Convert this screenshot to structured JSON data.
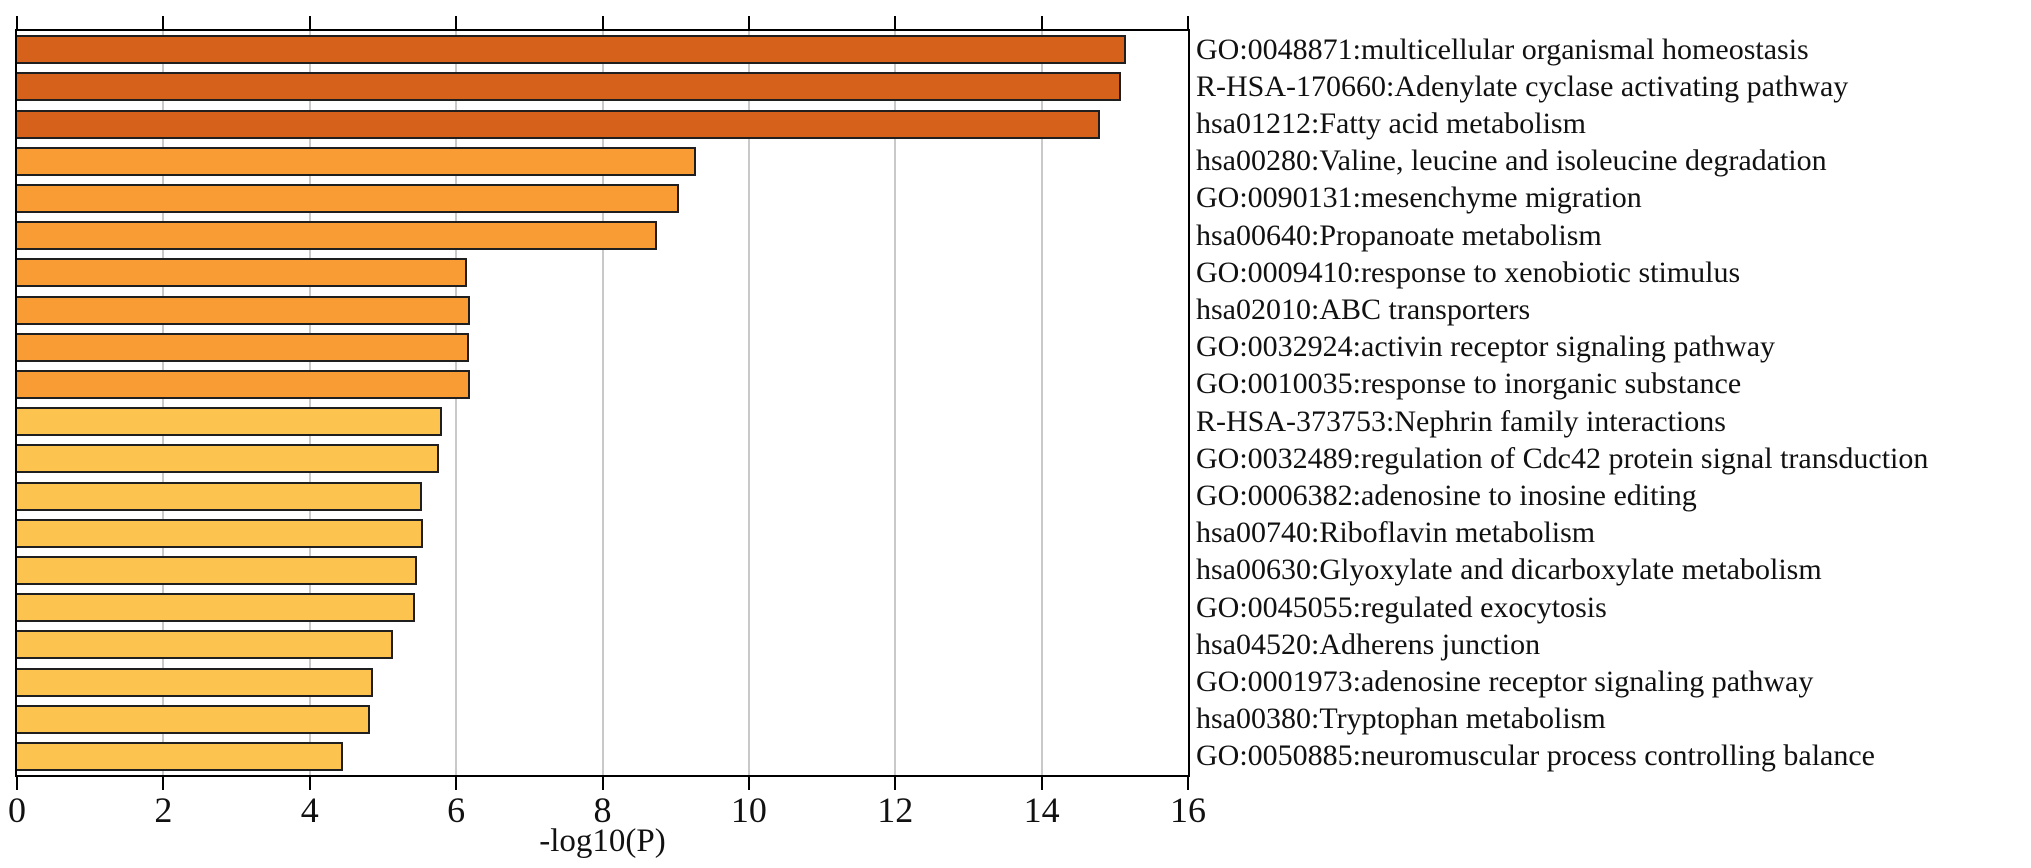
{
  "chart_data": {
    "type": "bar",
    "orientation": "horizontal",
    "title": "",
    "xlabel": "-log10(P)",
    "xlim": [
      0,
      16
    ],
    "xticks": [
      0,
      2,
      4,
      6,
      8,
      10,
      12,
      14,
      16
    ],
    "gridline_ticks": [
      2,
      4,
      6,
      8,
      10,
      12,
      14
    ],
    "grid": "vertical light gray gridlines behind bars",
    "legend": "none",
    "bar_border_color": "#1f1f1f",
    "frame_color": "#000000",
    "gridline_color": "#c9c9c9",
    "palette": {
      "high_significance": "#d6611a",
      "mid_significance": "#f89c33",
      "low_significance": "#fcc44f"
    },
    "items": [
      {
        "label": "GO:0048871:multicellular organismal homeostasis",
        "value": 15.15,
        "color": "#d6611a"
      },
      {
        "label": "R-HSA-170660:Adenylate cyclase activating pathway",
        "value": 15.08,
        "color": "#d6611a"
      },
      {
        "label": "hsa01212:Fatty acid metabolism",
        "value": 14.8,
        "color": "#d6611a"
      },
      {
        "label": "hsa00280:Valine, leucine and isoleucine degradation",
        "value": 9.28,
        "color": "#f89c33"
      },
      {
        "label": "GO:0090131:mesenchyme migration",
        "value": 9.05,
        "color": "#f89c33"
      },
      {
        "label": "hsa00640:Propanoate metabolism",
        "value": 8.74,
        "color": "#f89c33"
      },
      {
        "label": "GO:0009410:response to xenobiotic stimulus",
        "value": 6.15,
        "color": "#f89c33"
      },
      {
        "label": "hsa02010:ABC transporters",
        "value": 6.19,
        "color": "#f89c33"
      },
      {
        "label": "GO:0032924:activin receptor signaling pathway",
        "value": 6.17,
        "color": "#f89c33"
      },
      {
        "label": "GO:0010035:response to inorganic substance",
        "value": 6.19,
        "color": "#f89c33"
      },
      {
        "label": "R-HSA-373753:Nephrin family interactions",
        "value": 5.81,
        "color": "#fcc44f"
      },
      {
        "label": "GO:0032489:regulation of Cdc42 protein signal transduction",
        "value": 5.76,
        "color": "#fcc44f"
      },
      {
        "label": "GO:0006382:adenosine to inosine editing",
        "value": 5.54,
        "color": "#fcc44f"
      },
      {
        "label": "hsa00740:Riboflavin metabolism",
        "value": 5.55,
        "color": "#fcc44f"
      },
      {
        "label": "hsa00630:Glyoxylate and dicarboxylate metabolism",
        "value": 5.47,
        "color": "#fcc44f"
      },
      {
        "label": "GO:0045055:regulated exocytosis",
        "value": 5.44,
        "color": "#fcc44f"
      },
      {
        "label": "hsa04520:Adherens junction",
        "value": 5.14,
        "color": "#fcc44f"
      },
      {
        "label": "GO:0001973:adenosine receptor signaling pathway",
        "value": 4.87,
        "color": "#fcc44f"
      },
      {
        "label": "hsa00380:Tryptophan metabolism",
        "value": 4.82,
        "color": "#fcc44f"
      },
      {
        "label": "GO:0050885:neuromuscular process controlling balance",
        "value": 4.46,
        "color": "#fcc44f"
      }
    ]
  }
}
